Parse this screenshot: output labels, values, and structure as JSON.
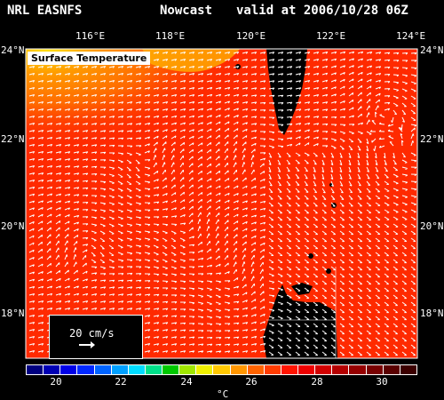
{
  "header": {
    "org": "NRL EASNFS",
    "mode": "Nowcast",
    "valid": "valid at 2006/10/28 06Z"
  },
  "panel_title": "Surface Temperature",
  "lon_ticks": [
    "116°E",
    "118°E",
    "120°E",
    "122°E",
    "124°E"
  ],
  "lat_ticks": [
    "24°N",
    "22°N",
    "20°N",
    "18°N"
  ],
  "reference_vector": {
    "label": "20 cm/s"
  },
  "colorbar": {
    "labels": [
      "20",
      "22",
      "24",
      "26",
      "28",
      "30"
    ],
    "unit": "°C",
    "colors": [
      "#000080",
      "#0000b4",
      "#0000e6",
      "#0028ff",
      "#0064ff",
      "#00a0ff",
      "#00dcff",
      "#00e08a",
      "#00c800",
      "#a0e600",
      "#f0f000",
      "#ffc800",
      "#ff9600",
      "#ff6400",
      "#ff3c00",
      "#ff1400",
      "#ee0000",
      "#d20000",
      "#b40000",
      "#960000",
      "#780000",
      "#5a0000",
      "#3c0000"
    ]
  },
  "map_colors": {
    "sea": "#ff2a00",
    "land": "#000000",
    "warm_nw": "#ff7a00",
    "coast_nw": "#ffd000"
  }
}
